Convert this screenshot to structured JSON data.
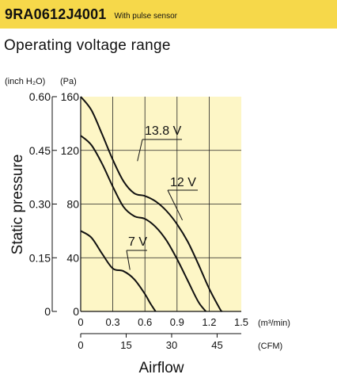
{
  "header": {
    "model": "9RA0612J4001",
    "note": "With pulse sensor",
    "background": "#f6d84a"
  },
  "subtitle": "Operating voltage range",
  "chart_data": {
    "type": "line",
    "title": "Operating voltage range",
    "ylabel": "Static pressure",
    "xlabel": "Airflow",
    "y_unit_inch": "(inch H₂O)",
    "y_unit_pa": "(Pa)",
    "x_unit_m3": "(m³/min)",
    "x_unit_cfm": "(CFM)",
    "xlim": [
      0,
      1.5
    ],
    "ylim": [
      0,
      160
    ],
    "x_ticks": [
      {
        "v": 0,
        "label": "0"
      },
      {
        "v": 0.3,
        "label": "0.3"
      },
      {
        "v": 0.6,
        "label": "0.6"
      },
      {
        "v": 0.9,
        "label": "0.9"
      },
      {
        "v": 1.2,
        "label": "1.2"
      },
      {
        "v": 1.5,
        "label": "1.5"
      }
    ],
    "cfm_ticks": [
      {
        "v": 0,
        "label": "0"
      },
      {
        "v": 15,
        "label": "15"
      },
      {
        "v": 30,
        "label": "30"
      },
      {
        "v": 45,
        "label": "45"
      }
    ],
    "y_ticks_pa": [
      {
        "v": 0,
        "label": "0"
      },
      {
        "v": 40,
        "label": "40"
      },
      {
        "v": 80,
        "label": "80"
      },
      {
        "v": 120,
        "label": "120"
      },
      {
        "v": 160,
        "label": "160"
      }
    ],
    "y_ticks_inch": [
      {
        "v": 0,
        "label": "0"
      },
      {
        "v": 0.15,
        "label": "0.15"
      },
      {
        "v": 0.3,
        "label": "0.30"
      },
      {
        "v": 0.45,
        "label": "0.45"
      },
      {
        "v": 0.6,
        "label": "0.60"
      }
    ],
    "grid": true,
    "series": [
      {
        "name": "13.8 V",
        "x": [
          0,
          0.1,
          0.2,
          0.3,
          0.4,
          0.5,
          0.6,
          0.7,
          0.8,
          0.9,
          1.0,
          1.1,
          1.2,
          1.3,
          1.32
        ],
        "y": [
          160,
          150,
          132,
          113,
          97,
          88,
          86,
          82,
          75,
          65,
          52,
          35,
          17,
          2,
          0
        ]
      },
      {
        "name": "12 V",
        "x": [
          0,
          0.1,
          0.2,
          0.3,
          0.4,
          0.5,
          0.6,
          0.7,
          0.8,
          0.9,
          1.0,
          1.1,
          1.17
        ],
        "y": [
          131,
          124,
          110,
          93,
          78,
          71,
          69,
          63,
          53,
          39,
          23,
          7,
          0
        ]
      },
      {
        "name": "7 V",
        "x": [
          0,
          0.1,
          0.2,
          0.3,
          0.4,
          0.5,
          0.6,
          0.65,
          0.7
        ],
        "y": [
          60,
          55,
          43,
          32,
          30,
          24,
          13,
          6,
          0
        ]
      }
    ]
  }
}
